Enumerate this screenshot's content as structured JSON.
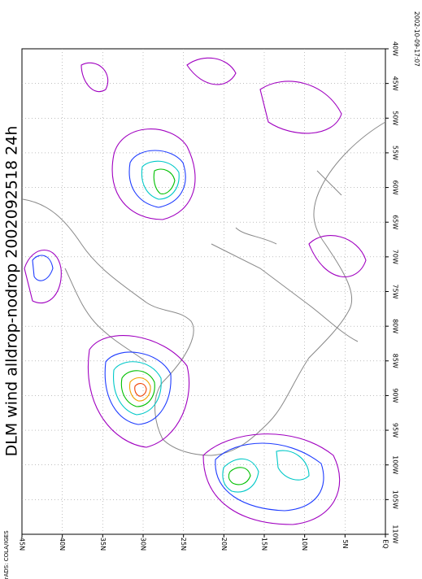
{
  "title": "DLM wind alldrop-nodrop 2002092518 24h",
  "lon_labels": [
    "40W",
    "45W",
    "50W",
    "55W",
    "60W",
    "65W",
    "70W",
    "75W",
    "80W",
    "85W",
    "90W",
    "95W",
    "100W",
    "105W",
    "110W"
  ],
  "lat_labels": [
    "45N",
    "40N",
    "35N",
    "30N",
    "25N",
    "20N",
    "15N",
    "10N",
    "5N",
    "EQ"
  ],
  "footer": {
    "credit": "GrADS: COLA/IGES",
    "timestamp": "2002-10-09-17:07"
  }
}
